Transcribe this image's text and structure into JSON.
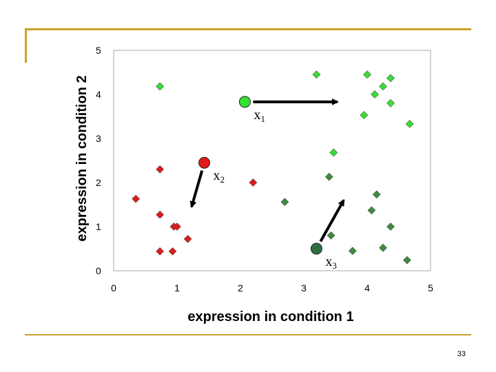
{
  "page": {
    "number": "33"
  },
  "colors": {
    "light_green": "#33e033",
    "dark_green": "#3f8a3f",
    "red": "#e01a1a",
    "frame": "#c9a227",
    "axis": "#aaaaaa",
    "arrow": "#000000"
  },
  "chart_data": {
    "type": "scatter",
    "title": "",
    "xlabel": "expression in condition 1",
    "ylabel": "expression in condition 2",
    "xlim": [
      0,
      5
    ],
    "ylim": [
      0,
      5
    ],
    "xticks": [
      "0",
      "1",
      "2",
      "3",
      "4",
      "5"
    ],
    "yticks": [
      "0",
      "1",
      "2",
      "3",
      "4",
      "5"
    ],
    "grid": false,
    "series": [
      {
        "marker": "diamond",
        "color": "#33e033",
        "points": [
          [
            0.73,
            4.18
          ],
          [
            3.2,
            4.45
          ],
          [
            4.0,
            4.45
          ],
          [
            4.37,
            4.37
          ],
          [
            4.25,
            4.18
          ],
          [
            4.12,
            4.0
          ],
          [
            4.37,
            3.8
          ],
          [
            3.95,
            3.53
          ],
          [
            4.67,
            3.33
          ],
          [
            3.47,
            2.68
          ]
        ]
      },
      {
        "marker": "diamond",
        "color": "#3f8a3f",
        "points": [
          [
            3.4,
            2.13
          ],
          [
            2.7,
            1.56
          ],
          [
            4.15,
            1.73
          ],
          [
            4.07,
            1.37
          ],
          [
            4.37,
            1.0
          ],
          [
            3.43,
            0.8
          ],
          [
            3.77,
            0.45
          ],
          [
            4.25,
            0.52
          ],
          [
            4.63,
            0.24
          ]
        ]
      },
      {
        "marker": "diamond",
        "color": "#e01a1a",
        "points": [
          [
            0.73,
            2.3
          ],
          [
            2.2,
            2.0
          ],
          [
            0.35,
            1.63
          ],
          [
            0.73,
            1.27
          ],
          [
            0.95,
            1.0
          ],
          [
            1.0,
            1.0
          ],
          [
            1.17,
            0.72
          ],
          [
            0.73,
            0.44
          ],
          [
            0.93,
            0.44
          ]
        ]
      }
    ],
    "highlighted_points": [
      {
        "label": "x",
        "subscript": "1",
        "x": 2.07,
        "y": 3.83,
        "color": "#33e033",
        "arrow_to": [
          3.53,
          3.83
        ],
        "label_position": "below-right"
      },
      {
        "label": "x",
        "subscript": "2",
        "x": 1.43,
        "y": 2.45,
        "color": "#e01a1a",
        "arrow_to": [
          1.23,
          1.45
        ],
        "label_position": "below-right"
      },
      {
        "label": "x",
        "subscript": "3",
        "x": 3.2,
        "y": 0.5,
        "color": "#2f6f3f",
        "arrow_to": [
          3.63,
          1.6
        ],
        "label_position": "below-right"
      }
    ]
  }
}
